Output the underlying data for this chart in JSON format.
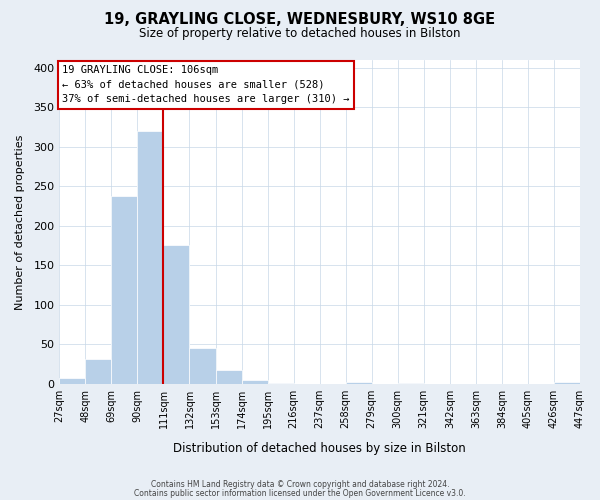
{
  "title": "19, GRAYLING CLOSE, WEDNESBURY, WS10 8GE",
  "subtitle": "Size of property relative to detached houses in Bilston",
  "xlabel": "Distribution of detached houses by size in Bilston",
  "ylabel": "Number of detached properties",
  "bar_color": "#b8d0e8",
  "bar_edge_color": "#ffffff",
  "bins": [
    27,
    48,
    69,
    90,
    111,
    132,
    153,
    174,
    195,
    216,
    237,
    258,
    279,
    300,
    321,
    342,
    363,
    384,
    405,
    426,
    447
  ],
  "counts": [
    8,
    32,
    238,
    320,
    176,
    45,
    17,
    5,
    1,
    0,
    0,
    3,
    0,
    1,
    0,
    0,
    0,
    0,
    0,
    3
  ],
  "vline_x": 111,
  "vline_color": "#cc0000",
  "annotation_title": "19 GRAYLING CLOSE: 106sqm",
  "annotation_line1": "← 63% of detached houses are smaller (528)",
  "annotation_line2": "37% of semi-detached houses are larger (310) →",
  "annotation_box_color": "#ffffff",
  "annotation_box_edge": "#cc0000",
  "ylim": [
    0,
    410
  ],
  "yticks": [
    0,
    50,
    100,
    150,
    200,
    250,
    300,
    350,
    400
  ],
  "tick_labels": [
    "27sqm",
    "48sqm",
    "69sqm",
    "90sqm",
    "111sqm",
    "132sqm",
    "153sqm",
    "174sqm",
    "195sqm",
    "216sqm",
    "237sqm",
    "258sqm",
    "279sqm",
    "300sqm",
    "321sqm",
    "342sqm",
    "363sqm",
    "384sqm",
    "405sqm",
    "426sqm",
    "447sqm"
  ],
  "footer1": "Contains HM Land Registry data © Crown copyright and database right 2024.",
  "footer2": "Contains public sector information licensed under the Open Government Licence v3.0.",
  "background_color": "#e8eef5",
  "plot_bg_color": "#ffffff",
  "grid_color": "#c8d8e8"
}
